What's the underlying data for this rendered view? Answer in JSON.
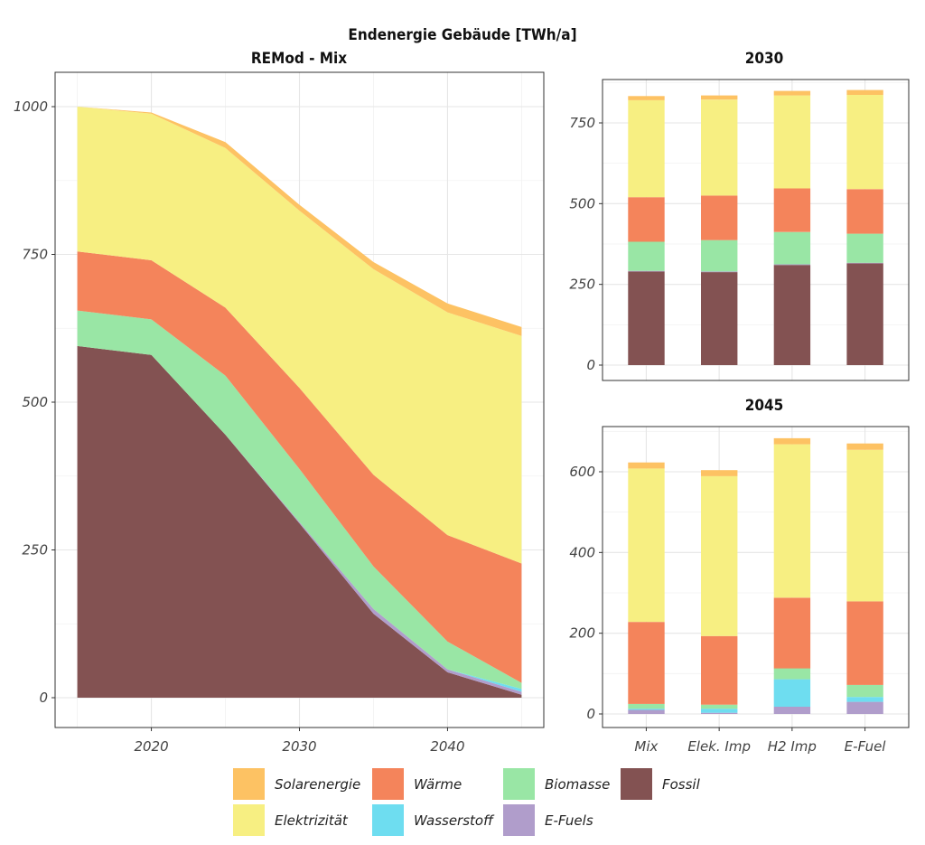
{
  "title": "Endenergie Gebäude [TWh/a]",
  "legend": {
    "items": [
      {
        "key": "solar",
        "label": "Solarenergie"
      },
      {
        "key": "waerme",
        "label": "Wärme"
      },
      {
        "key": "biomasse",
        "label": "Biomasse"
      },
      {
        "key": "fossil",
        "label": "Fossil"
      },
      {
        "key": "elektrizitaet",
        "label": "Elektrizität"
      },
      {
        "key": "wasserstoff",
        "label": "Wasserstoff"
      },
      {
        "key": "efuels",
        "label": "E-Fuels"
      }
    ]
  },
  "colors": {
    "solar": "#FDC263",
    "elektrizitaet": "#F7EF82",
    "waerme": "#F4845B",
    "wasserstoff": "#6EDDF0",
    "biomasse": "#99E6A5",
    "efuels": "#B09DCB",
    "fossil": "#835252"
  },
  "chart_data": [
    {
      "type": "area",
      "title": "REMod - Mix",
      "xlabel": "",
      "ylabel": "",
      "x": [
        2015,
        2020,
        2025,
        2030,
        2035,
        2040,
        2045
      ],
      "xticks": [
        2020,
        2030,
        2040
      ],
      "yticks": [
        0,
        250,
        500,
        750,
        1000
      ],
      "ylim": [
        0,
        1070
      ],
      "xlim": [
        2013.5,
        2046.5
      ],
      "grid": true,
      "stack_order": [
        "fossil",
        "efuels",
        "wasserstoff",
        "biomasse",
        "waerme",
        "elektrizitaet",
        "solar"
      ],
      "series": [
        {
          "key": "fossil",
          "name": "Fossil",
          "values": [
            595,
            580,
            445,
            295,
            142,
            43,
            5
          ]
        },
        {
          "key": "efuels",
          "name": "E-Fuels",
          "values": [
            0,
            0,
            0,
            2,
            8,
            5,
            5
          ]
        },
        {
          "key": "wasserstoff",
          "name": "Wasserstoff",
          "values": [
            0,
            0,
            0,
            0,
            0,
            0,
            5
          ]
        },
        {
          "key": "biomasse",
          "name": "Biomasse",
          "values": [
            60,
            60,
            100,
            90,
            72,
            47,
            10
          ]
        },
        {
          "key": "waerme",
          "name": "Wärme",
          "values": [
            100,
            100,
            115,
            137,
            155,
            180,
            202
          ]
        },
        {
          "key": "elektrizitaet",
          "name": "Elektrizität",
          "values": [
            245,
            248,
            270,
            300,
            348,
            377,
            385
          ]
        },
        {
          "key": "solar",
          "name": "Solarenergie",
          "values": [
            0,
            2,
            10,
            10,
            12,
            15,
            15
          ]
        }
      ]
    },
    {
      "type": "bar",
      "title": "2030",
      "categories": [
        "Mix",
        "Elek. Imp",
        "H2 Imp",
        "E-Fuel"
      ],
      "yticks": [
        0,
        250,
        500,
        750
      ],
      "ylim": [
        -38,
        870
      ],
      "grid": true,
      "series": [
        {
          "key": "fossil",
          "name": "Fossil",
          "values": [
            290,
            288,
            310,
            315
          ]
        },
        {
          "key": "efuels",
          "name": "E-Fuels",
          "values": [
            2,
            2,
            2,
            2
          ]
        },
        {
          "key": "wasserstoff",
          "name": "Wasserstoff",
          "values": [
            0,
            0,
            0,
            0
          ]
        },
        {
          "key": "biomasse",
          "name": "Biomasse",
          "values": [
            90,
            97,
            100,
            90
          ]
        },
        {
          "key": "waerme",
          "name": "Wärme",
          "values": [
            138,
            138,
            135,
            138
          ]
        },
        {
          "key": "elektrizitaet",
          "name": "Elektrizität",
          "values": [
            300,
            297,
            288,
            292
          ]
        },
        {
          "key": "solar",
          "name": "Solarenergie",
          "values": [
            13,
            13,
            14,
            15
          ]
        }
      ]
    },
    {
      "type": "bar",
      "title": "2045",
      "categories": [
        "Mix",
        "Elek. Imp",
        "H2 Imp",
        "E-Fuel"
      ],
      "yticks": [
        0,
        200,
        400,
        600
      ],
      "ylim": [
        -8,
        710
      ],
      "grid": true,
      "series": [
        {
          "key": "fossil",
          "name": "Fossil",
          "values": [
            0,
            0,
            0,
            0
          ]
        },
        {
          "key": "efuels",
          "name": "E-Fuels",
          "values": [
            10,
            3,
            18,
            30
          ]
        },
        {
          "key": "wasserstoff",
          "name": "Wasserstoff",
          "values": [
            3,
            10,
            68,
            12
          ]
        },
        {
          "key": "biomasse",
          "name": "Biomasse",
          "values": [
            12,
            10,
            27,
            30
          ]
        },
        {
          "key": "waerme",
          "name": "Wärme",
          "values": [
            203,
            170,
            175,
            207
          ]
        },
        {
          "key": "elektrizitaet",
          "name": "Elektrizität",
          "values": [
            380,
            396,
            380,
            375
          ]
        },
        {
          "key": "solar",
          "name": "Solarenergie",
          "values": [
            15,
            15,
            15,
            16
          ]
        }
      ]
    }
  ]
}
